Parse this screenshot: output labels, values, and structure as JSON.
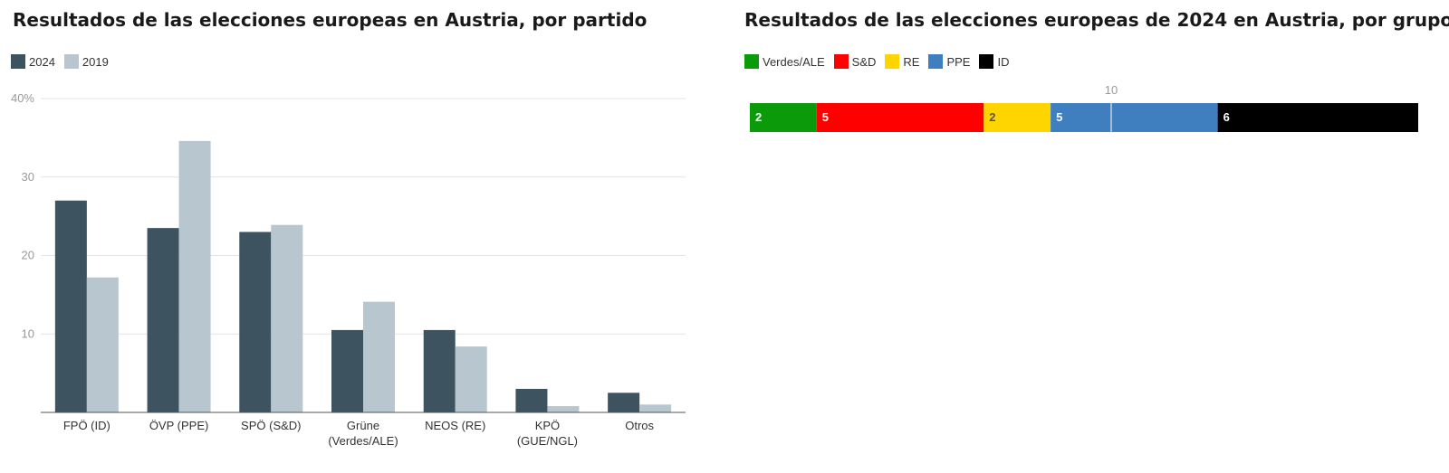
{
  "chart_data": [
    {
      "type": "bar",
      "title": "Resultados de las elecciones europeas en Austria, por partido",
      "legend_position": "top-left",
      "grid": true,
      "categories": [
        "FPÖ (ID)",
        "ÖVP (PPE)",
        "SPÖ (S&D)",
        "Grüne (Verdes/ALE)",
        "NEOS (RE)",
        "KPÖ (GUE/NGL)",
        "Otros"
      ],
      "category_lines": [
        [
          "FPÖ (ID)"
        ],
        [
          "ÖVP (PPE)"
        ],
        [
          "SPÖ (S&D)"
        ],
        [
          "Grüne",
          "(Verdes/ALE)"
        ],
        [
          "NEOS (RE)"
        ],
        [
          "KPÖ",
          "(GUE/NGL)"
        ],
        [
          "Otros"
        ]
      ],
      "series": [
        {
          "name": "2024",
          "color": "#3d5360",
          "values": [
            27.0,
            23.5,
            23.0,
            10.5,
            10.5,
            3.0,
            2.5
          ]
        },
        {
          "name": "2019",
          "color": "#b8c6cf",
          "values": [
            17.2,
            34.6,
            23.9,
            14.1,
            8.4,
            0.8,
            1.0
          ]
        }
      ],
      "ylim": [
        0,
        40
      ],
      "yticks": [
        10,
        20,
        30,
        40
      ],
      "ytick_labels": [
        "10",
        "20",
        "30",
        "40%"
      ],
      "xlabel": "",
      "ylabel": ""
    },
    {
      "type": "stacked-bar",
      "title": "Resultados de las elecciones europeas de 2024 en Austria, por grupo",
      "legend_position": "top-left",
      "marker": {
        "value": 10,
        "label": "10"
      },
      "segments": [
        {
          "name": "Verdes/ALE",
          "value": 2,
          "color": "#0a9a0a",
          "label_color": "#ffffff"
        },
        {
          "name": "S&D",
          "value": 5,
          "color": "#ff0000",
          "label_color": "#ffffff"
        },
        {
          "name": "RE",
          "value": 2,
          "color": "#ffd500",
          "label_color": "#555555"
        },
        {
          "name": "PPE",
          "value": 5,
          "color": "#3f7fbf",
          "label_color": "#ffffff"
        },
        {
          "name": "ID",
          "value": 6,
          "color": "#000000",
          "label_color": "#ffffff"
        }
      ],
      "total": 20
    }
  ]
}
